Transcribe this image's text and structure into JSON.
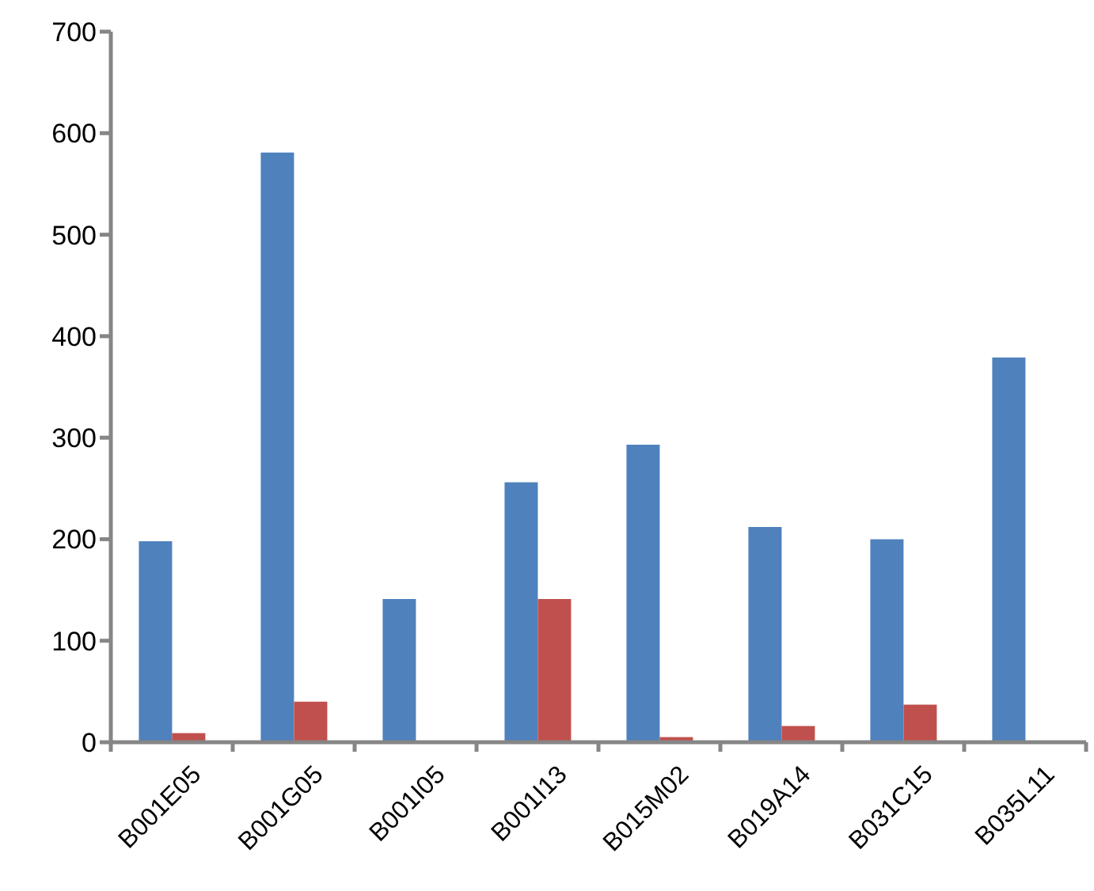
{
  "chart_data": {
    "type": "bar",
    "categories": [
      "B001E05",
      "B001G05",
      "B001I05",
      "B001I13",
      "B015M02",
      "B019A14",
      "B031C15",
      "B035L11"
    ],
    "series": [
      {
        "color": "#4f81bd",
        "values": [
          198,
          581,
          141,
          256,
          293,
          212,
          200,
          379
        ]
      },
      {
        "color": "#c0504d",
        "values": [
          9,
          40,
          null,
          141,
          5,
          16,
          37,
          null
        ]
      }
    ],
    "ylim": [
      0,
      700
    ],
    "yticks": [
      0,
      100,
      200,
      300,
      400,
      500,
      600,
      700
    ]
  }
}
